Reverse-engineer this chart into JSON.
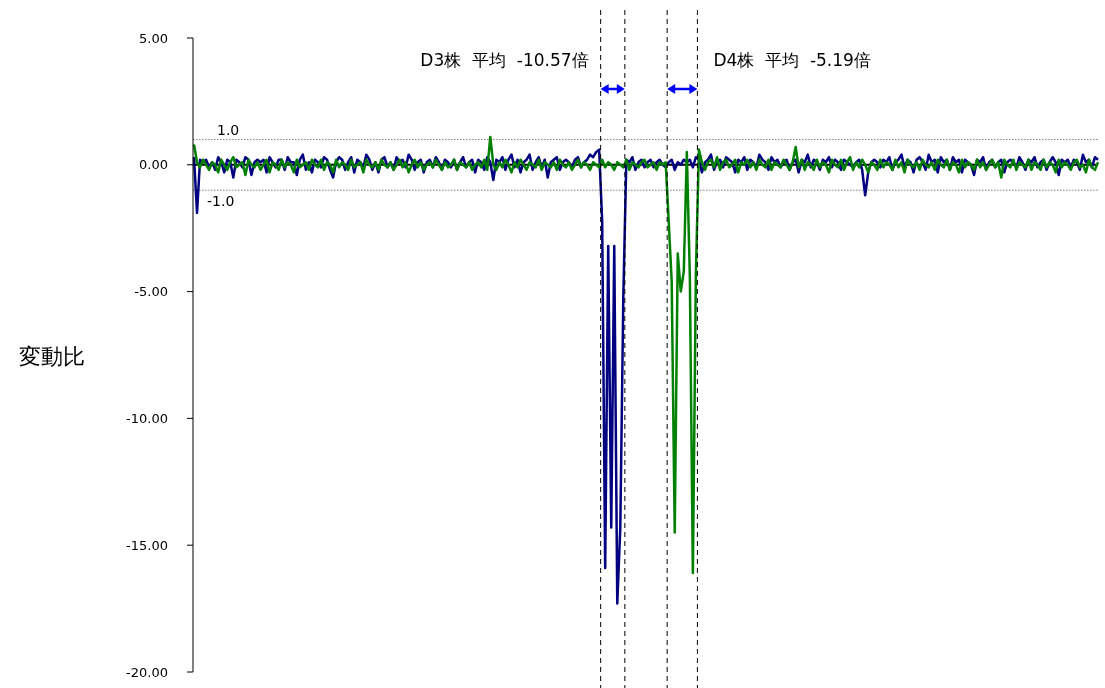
{
  "chart_data": {
    "type": "line",
    "ylabel": "変動比",
    "ylim": [
      -20,
      5
    ],
    "categories": [
      null,
      null,
      null,
      null,
      null,
      null,
      null,
      null,
      null,
      null,
      null,
      null,
      null,
      null,
      null,
      null,
      null,
      null,
      null,
      null,
      null,
      null,
      null,
      null,
      null,
      null,
      null,
      null,
      null,
      null,
      null,
      null,
      null,
      null,
      null,
      null,
      null,
      null,
      null,
      null,
      null,
      null,
      null,
      null,
      null,
      null,
      null,
      null,
      null,
      null,
      null,
      null,
      null,
      null,
      null,
      null,
      null,
      null,
      null,
      null,
      null,
      null,
      null,
      null,
      null,
      null,
      null,
      null,
      null,
      null,
      null,
      null,
      null,
      null,
      null,
      null,
      null,
      null,
      null,
      null,
      null,
      null,
      null,
      null,
      null,
      null,
      null,
      null,
      null,
      null,
      null,
      null,
      null,
      null,
      null,
      null,
      null,
      null,
      null,
      null,
      null,
      null,
      null,
      null,
      null,
      null,
      null,
      null,
      null,
      null,
      null,
      null,
      null,
      null,
      null,
      null,
      null,
      null,
      null,
      null,
      null,
      null,
      null,
      null,
      null,
      null,
      null,
      null,
      null,
      null,
      null,
      null,
      null,
      null,
      null,
      null,
      null,
      null,
      null,
      null,
      null,
      null,
      null,
      null,
      null,
      null,
      null,
      null,
      null,
      null,
      null,
      null,
      null,
      null,
      null,
      null,
      null,
      null,
      null,
      null,
      null,
      null,
      null,
      null,
      null,
      null,
      null,
      null,
      null,
      null,
      null,
      null,
      null,
      null,
      null,
      null,
      null,
      null,
      null,
      null,
      null,
      null,
      null,
      null,
      null,
      null,
      null,
      null,
      null,
      null,
      null,
      null,
      null,
      null,
      null,
      null,
      null,
      null,
      null,
      null,
      null,
      null,
      null,
      null,
      null,
      null,
      null,
      null,
      null,
      null,
      null,
      null,
      null,
      null,
      null,
      null,
      null,
      null,
      null,
      null,
      null,
      null,
      null,
      null,
      null,
      null,
      null,
      null,
      null,
      null,
      null,
      null,
      null,
      null,
      null,
      null,
      null,
      null,
      null,
      null,
      null,
      null,
      null,
      null,
      null,
      null,
      null,
      null,
      null,
      null,
      null,
      null,
      null,
      null,
      null,
      null,
      null,
      null,
      null,
      null,
      null,
      null,
      null,
      null,
      null,
      null,
      null,
      null,
      null,
      null,
      null,
      null,
      null,
      null,
      null,
      null,
      null,
      null,
      null,
      null,
      null,
      null,
      null,
      null,
      null,
      null,
      null,
      null,
      null,
      null,
      null,
      null,
      null,
      null,
      null,
      null,
      null,
      null,
      null,
      null
    ],
    "yticks": [
      {
        "value": 5,
        "label": "5.00"
      },
      {
        "value": 0,
        "label": "0.00"
      },
      {
        "value": -5,
        "label": "-5.00"
      },
      {
        "value": -10,
        "label": "-10.00"
      },
      {
        "value": -15,
        "label": "-15.00"
      },
      {
        "value": -20,
        "label": "-20.00"
      }
    ],
    "tick_labels": "y",
    "line_style": "solid",
    "marker": "none",
    "annotations": [
      "D3株  平均  -10.57倍",
      "D4株  平均  -5.19倍"
    ],
    "ref_lines": [
      {
        "axis": "y",
        "value": 0,
        "color": "#000000",
        "line_style": "solid"
      },
      {
        "axis": "y",
        "value": 1,
        "label": "1.0",
        "color": "#808080",
        "line_style": "dotted"
      },
      {
        "axis": "y",
        "value": -1,
        "label": "-1.0",
        "color": "#808080",
        "line_style": "dotted"
      }
    ],
    "series": [
      {
        "color": "#000080",
        "values": [
          0.3,
          -1.9,
          0.2,
          0.1,
          0.2,
          -0.1,
          0.1,
          -0.2,
          0.3,
          0.1,
          -0.3,
          0.2,
          0.1,
          -0.5,
          0.2,
          0.1,
          -0.1,
          0.3,
          0.2,
          -0.4,
          0.1,
          0.2,
          0.1,
          0.2,
          -0.3,
          0.3,
          0.1,
          -0.1,
          0.2,
          0.2,
          -0.2,
          0.3,
          0.1,
          0.1,
          -0.4,
          0.2,
          0.4,
          -0.2,
          0.1,
          -0.3,
          0.2,
          0.1,
          -0.1,
          0.3,
          0.2,
          -0.2,
          -0.5,
          0.1,
          0.3,
          0.2,
          -0.2,
          0.1,
          0.3,
          -0.3,
          0.2,
          0.1,
          -0.1,
          0.4,
          0.2,
          -0.2,
          0.1,
          -0.3,
          0.2,
          0.3,
          -0.1,
          0.1,
          -0.2,
          0.3,
          0.1,
          0.2,
          -0.1,
          0.4,
          0.2,
          -0.2,
          0.1,
          0.2,
          -0.3,
          0.1,
          0.2,
          -0.1,
          0.3,
          0.1,
          -0.2,
          0.2,
          0.1,
          -0.1,
          0.2,
          -0.2,
          0.1,
          0.3,
          -0.1,
          0.1,
          0.2,
          -0.3,
          0.2,
          0.1,
          -0.2,
          0.3,
          0.1,
          -0.6,
          0.2,
          0.1,
          0.3,
          -0.2,
          0.2,
          0.4,
          -0.1,
          0.2,
          -0.3,
          0.1,
          0.2,
          0.4,
          -0.2,
          0.1,
          0.3,
          -0.1,
          0.2,
          -0.5,
          0.1,
          0.2,
          0.3,
          -0.2,
          0.1,
          0.2,
          0.1,
          -0.1,
          0.2,
          0.3,
          -0.1,
          0.1,
          0.2,
          0.4,
          0.3,
          0.5,
          0.6,
          -2.2,
          -15.9,
          -3.2,
          -14.3,
          -3.2,
          -17.3,
          -14.3,
          -5.2,
          0.2,
          0.1,
          0.3,
          -0.2,
          0.1,
          0.2,
          -0.1,
          0.1,
          0.2,
          -0.1,
          0.1,
          0.2,
          0.0,
          -0.1,
          0.1,
          0.2,
          -0.2,
          0.1,
          0.0,
          0.2,
          0.1,
          0.2,
          -0.1,
          0.3,
          0.2,
          -0.3,
          0.1,
          0.2,
          0.4,
          -0.2,
          0.1,
          0.2,
          -0.1,
          0.3,
          0.2,
          0.1,
          -0.3,
          0.2,
          0.1,
          0.3,
          -0.2,
          0.2,
          0.1,
          -0.1,
          0.4,
          0.2,
          0.1,
          -0.2,
          0.3,
          0.1,
          0.2,
          -0.1,
          0.1,
          0.2,
          -0.2,
          0.1,
          0.2,
          -0.3,
          0.2,
          0.1,
          0.4,
          -0.1,
          0.2,
          0.1,
          -0.2,
          0.2,
          0.1,
          0.3,
          -0.1,
          0.2,
          0.1,
          -0.2,
          0.2,
          0.1,
          0.0,
          -0.1,
          0.1,
          0.2,
          -0.2,
          -1.2,
          -0.3,
          0.1,
          0.2,
          0.1,
          -0.1,
          0.2,
          0.1,
          0.3,
          -0.2,
          0.1,
          0.2,
          0.4,
          -0.1,
          0.2,
          0.1,
          -0.3,
          0.2,
          0.3,
          0.1,
          -0.2,
          0.4,
          0.1,
          0.2,
          -0.3,
          0.3,
          0.1,
          0.2,
          -0.2,
          0.3,
          0.1,
          0.2,
          -0.3,
          0.2,
          0.1,
          0.0,
          -0.4,
          0.2,
          0.1,
          0.3,
          -0.2,
          0.1,
          0.2,
          -0.1,
          0.1,
          0.2,
          -0.3,
          0.1,
          0.2,
          0.1,
          -0.1,
          0.3,
          0.1,
          -0.2,
          0.2,
          0.1,
          0.3,
          -0.1,
          0.1,
          0.2,
          -0.2,
          0.1,
          0.3,
          0.1,
          -0.4,
          0.2,
          0.1,
          0.2,
          -0.1,
          0.2,
          0.1,
          -0.2,
          0.4,
          0.1,
          0.2,
          -0.1,
          0.3,
          0.2
        ]
      },
      {
        "color": "#008000",
        "values": [
          0.8,
          0.1,
          -0.1,
          0.2,
          0.0,
          -0.2,
          0.1,
          0.0,
          -0.3,
          0.2,
          0.0,
          -0.2,
          0.1,
          0.3,
          -0.1,
          0.0,
          0.1,
          -0.4,
          0.2,
          0.0,
          -0.1,
          0.1,
          -0.2,
          0.0,
          0.2,
          -0.3,
          0.1,
          0.0,
          -0.2,
          0.2,
          -0.1,
          0.1,
          0.0,
          -0.3,
          0.2,
          -0.1,
          0.0,
          0.1,
          -0.2,
          0.2,
          0.0,
          -0.1,
          0.2,
          -0.2,
          0.1,
          0.0,
          -0.3,
          0.2,
          -0.1,
          0.1,
          0.0,
          -0.2,
          0.2,
          -0.1,
          0.0,
          0.1,
          -0.3,
          0.2,
          0.0,
          -0.1,
          0.1,
          -0.2,
          0.2,
          0.0,
          -0.1,
          0.1,
          -0.2,
          0.0,
          0.2,
          -0.1,
          0.1,
          -0.3,
          0.0,
          0.2,
          -0.1,
          0.1,
          -0.2,
          0.0,
          0.1,
          -0.1,
          0.2,
          0.0,
          -0.2,
          0.1,
          -0.1,
          0.0,
          0.2,
          -0.2,
          0.1,
          0.0,
          -0.1,
          0.1,
          -0.2,
          0.0,
          0.1,
          -0.1,
          0.2,
          -0.2,
          1.1,
          0.0,
          -0.2,
          0.1,
          -0.1,
          0.2,
          0.0,
          -0.3,
          0.1,
          -0.1,
          0.2,
          0.0,
          -0.2,
          0.1,
          0.0,
          -0.1,
          0.2,
          -0.2,
          0.1,
          0.0,
          -0.1,
          0.1,
          -0.2,
          0.2,
          0.0,
          -0.1,
          0.1,
          -0.2,
          0.0,
          0.2,
          -0.1,
          0.1,
          0.0,
          -0.2,
          0.1,
          0.0,
          -0.1,
          0.2,
          -0.1,
          0.1,
          0.0,
          -0.2,
          0.1,
          0.0,
          -0.1,
          0.2,
          -0.2,
          0.1,
          0.0,
          -0.1,
          0.1,
          0.2,
          -0.1,
          0.0,
          0.1,
          -0.2,
          0.1,
          0.0,
          0.1,
          -2.2,
          -4.6,
          -14.5,
          -3.5,
          -5.0,
          -4.2,
          0.5,
          -4.4,
          -16.1,
          -4.3,
          0.6,
          0.1,
          -0.2,
          0.1,
          0.2,
          -0.1,
          0.3,
          -0.2,
          0.1,
          0.2,
          -0.1,
          0.0,
          0.2,
          -0.3,
          0.1,
          0.0,
          0.2,
          -0.1,
          0.1,
          -0.2,
          0.2,
          0.0,
          -0.1,
          0.2,
          -0.2,
          0.1,
          0.0,
          -0.1,
          0.2,
          0.0,
          -0.2,
          0.1,
          0.7,
          -0.1,
          0.2,
          -0.2,
          0.1,
          0.0,
          -0.2,
          0.2,
          -0.1,
          0.1,
          0.0,
          -0.3,
          0.2,
          0.0,
          -0.1,
          0.2,
          -0.2,
          0.1,
          0.3,
          -0.2,
          0.1,
          -0.1,
          0.2,
          0.0,
          -0.3,
          0.1,
          0.0,
          -0.2,
          0.2,
          -0.1,
          0.1,
          0.0,
          -0.2,
          0.2,
          -0.1,
          0.1,
          -0.3,
          0.2,
          0.0,
          -0.1,
          0.1,
          -0.2,
          0.2,
          0.0,
          -0.1,
          0.1,
          -0.2,
          0.2,
          0.0,
          -0.1,
          0.2,
          -0.2,
          0.1,
          0.0,
          -0.3,
          0.2,
          -0.1,
          0.1,
          0.0,
          -0.2,
          0.2,
          -0.1,
          0.1,
          -0.2,
          0.0,
          0.2,
          -0.1,
          0.1,
          -0.5,
          0.2,
          0.0,
          -0.1,
          0.2,
          -0.2,
          0.1,
          0.0,
          -0.1,
          0.2,
          -0.2,
          0.1,
          0.0,
          -0.2,
          0.2,
          -0.1,
          0.1,
          0.0,
          -0.3,
          0.2,
          -0.1,
          0.1,
          0.0,
          -0.2,
          0.1,
          0.2,
          -0.1,
          0.0,
          -0.3,
          0.2,
          -0.1,
          -0.2,
          0.1
        ]
      }
    ]
  }
}
